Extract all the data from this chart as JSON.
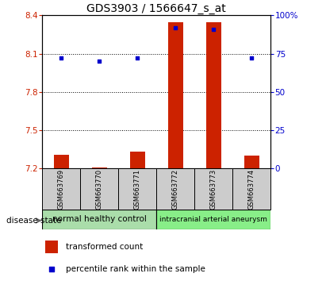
{
  "title": "GDS3903 / 1566647_s_at",
  "samples": [
    "GSM663769",
    "GSM663770",
    "GSM663771",
    "GSM663772",
    "GSM663773",
    "GSM663774"
  ],
  "red_values": [
    7.31,
    7.21,
    7.33,
    8.35,
    8.35,
    7.3
  ],
  "blue_values": [
    72.0,
    70.0,
    72.0,
    92.0,
    91.0,
    72.0
  ],
  "ylim_left": [
    7.2,
    8.4
  ],
  "ylim_right": [
    0,
    100
  ],
  "yticks_left": [
    7.2,
    7.5,
    7.8,
    8.1,
    8.4
  ],
  "yticks_right": [
    0,
    25,
    50,
    75,
    100
  ],
  "ytick_labels_right": [
    "0",
    "25",
    "50",
    "75",
    "100%"
  ],
  "bar_color": "#cc2200",
  "dot_color": "#0000cc",
  "group1_label": "normal healthy control",
  "group2_label": "intracranial arterial aneurysm",
  "group1_indices": [
    0,
    1,
    2
  ],
  "group2_indices": [
    3,
    4,
    5
  ],
  "group1_color": "#aaddaa",
  "group2_color": "#88ee88",
  "sample_box_color": "#cccccc",
  "legend_red_label": "transformed count",
  "legend_blue_label": "percentile rank within the sample",
  "disease_state_label": "disease state",
  "bar_width": 0.4,
  "title_fontsize": 10,
  "tick_fontsize": 7.5,
  "label_fontsize": 7,
  "legend_fontsize": 7.5,
  "group_label_fontsize": 7.5,
  "group2_label_fontsize": 6.5
}
